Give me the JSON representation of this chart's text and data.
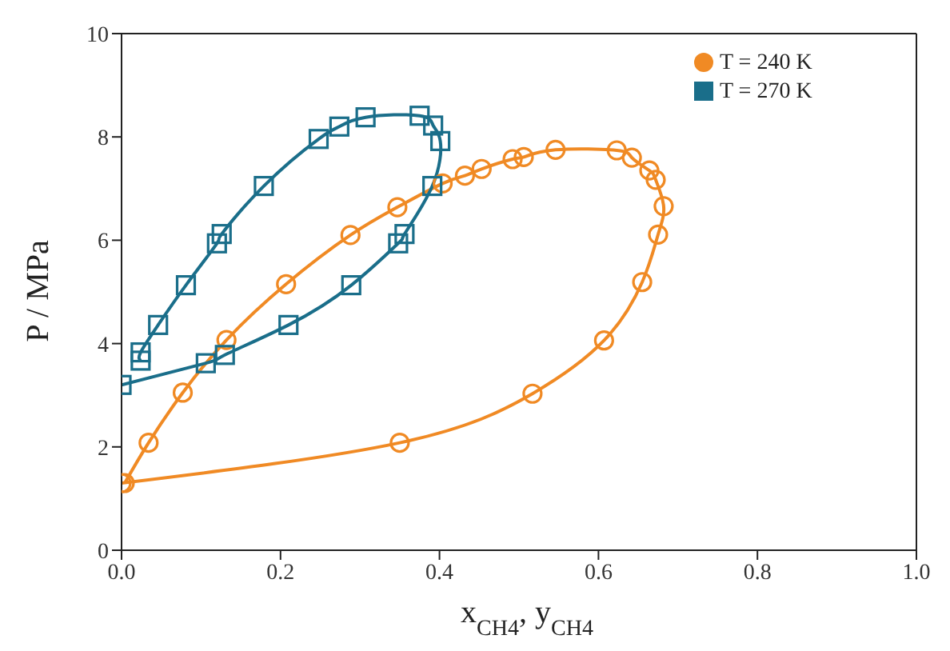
{
  "chart_data": {
    "type": "line",
    "xlabel": "x$_{CH4}$, y$_{CH4}$",
    "ylabel": "P / MPa",
    "xlim": [
      0,
      1
    ],
    "ylim": [
      0,
      10
    ],
    "xticks": [
      {
        "value": 0,
        "label": "0.0"
      },
      {
        "value": 0.2,
        "label": "0.2"
      },
      {
        "value": 0.4,
        "label": "0.4"
      },
      {
        "value": 0.6,
        "label": "0.6"
      },
      {
        "value": 0.8,
        "label": "0.8"
      },
      {
        "value": 1,
        "label": "1.0"
      }
    ],
    "yticks": [
      0,
      2,
      4,
      6,
      8,
      10
    ],
    "legend": "top right",
    "series": [
      {
        "name": "T = 240 K",
        "color": "#f08a24",
        "marker": "circle",
        "x": [
          0.0,
          0.35,
          0.517,
          0.607,
          0.655,
          0.675,
          0.682,
          0.672,
          0.664,
          0.642,
          0.623,
          0.546,
          0.506,
          0.492,
          0.453,
          0.432,
          0.404,
          0.347,
          0.288,
          0.207,
          0.132,
          0.077,
          0.034,
          0.004
        ],
        "values": [
          1.3,
          2.08,
          3.03,
          4.06,
          5.19,
          6.11,
          6.66,
          7.17,
          7.35,
          7.6,
          7.74,
          7.75,
          7.61,
          7.57,
          7.38,
          7.25,
          7.1,
          6.64,
          6.1,
          5.15,
          4.07,
          3.05,
          2.08,
          1.3
        ]
      },
      {
        "name": "T = 270 K",
        "color": "#1a6e8a",
        "marker": "square",
        "x": [
          0.0,
          0.106,
          0.13,
          0.21,
          0.289,
          0.348,
          0.356,
          0.391,
          0.401,
          0.392,
          0.375,
          0.307,
          0.274,
          0.248,
          0.179,
          0.126,
          0.12,
          0.081,
          0.046,
          0.024,
          0.024
        ],
        "values": [
          3.2,
          3.62,
          3.78,
          4.36,
          5.13,
          5.94,
          6.12,
          7.05,
          7.92,
          8.22,
          8.41,
          8.38,
          8.2,
          7.96,
          7.05,
          6.12,
          5.94,
          5.13,
          4.36,
          3.83,
          3.67
        ]
      }
    ]
  }
}
